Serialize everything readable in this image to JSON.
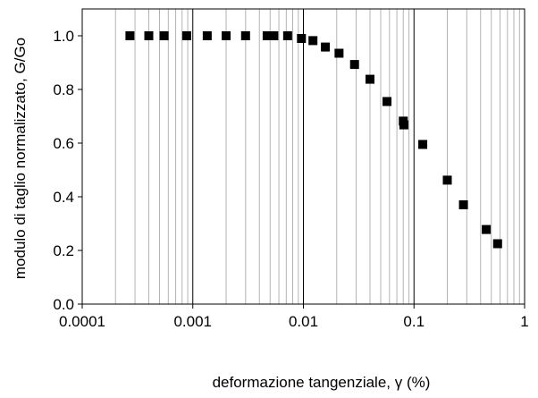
{
  "chart_data": {
    "type": "scatter",
    "xlabel": "deformazione tangenziale, γ (%)",
    "ylabel": "modulo di taglio normalizzato, G/Go",
    "x_scale": "log",
    "xlim": [
      0.0001,
      1
    ],
    "ylim": [
      0,
      1.1
    ],
    "x_ticks": [
      "0.0001",
      "0.001",
      "0.01",
      "0.1",
      "1"
    ],
    "y_ticks": [
      "0.0",
      "0.2",
      "0.4",
      "0.6",
      "0.8",
      "1.0"
    ],
    "grid": {
      "x_major": true,
      "x_minor": true,
      "y_major": false
    },
    "marker": "square",
    "marker_color": "#000000",
    "points": [
      {
        "x": 0.00027,
        "y": 1.0
      },
      {
        "x": 0.0004,
        "y": 1.0
      },
      {
        "x": 0.00055,
        "y": 1.0
      },
      {
        "x": 0.00088,
        "y": 1.0
      },
      {
        "x": 0.00135,
        "y": 1.0
      },
      {
        "x": 0.002,
        "y": 1.0
      },
      {
        "x": 0.003,
        "y": 1.0
      },
      {
        "x": 0.0047,
        "y": 1.0
      },
      {
        "x": 0.0054,
        "y": 1.0
      },
      {
        "x": 0.0072,
        "y": 1.0
      },
      {
        "x": 0.0096,
        "y": 0.99
      },
      {
        "x": 0.0122,
        "y": 0.982
      },
      {
        "x": 0.0158,
        "y": 0.958
      },
      {
        "x": 0.021,
        "y": 0.935
      },
      {
        "x": 0.029,
        "y": 0.893
      },
      {
        "x": 0.04,
        "y": 0.838
      },
      {
        "x": 0.057,
        "y": 0.755
      },
      {
        "x": 0.08,
        "y": 0.682
      },
      {
        "x": 0.081,
        "y": 0.668
      },
      {
        "x": 0.12,
        "y": 0.595
      },
      {
        "x": 0.2,
        "y": 0.462
      },
      {
        "x": 0.28,
        "y": 0.37
      },
      {
        "x": 0.45,
        "y": 0.278
      },
      {
        "x": 0.57,
        "y": 0.225
      }
    ]
  }
}
